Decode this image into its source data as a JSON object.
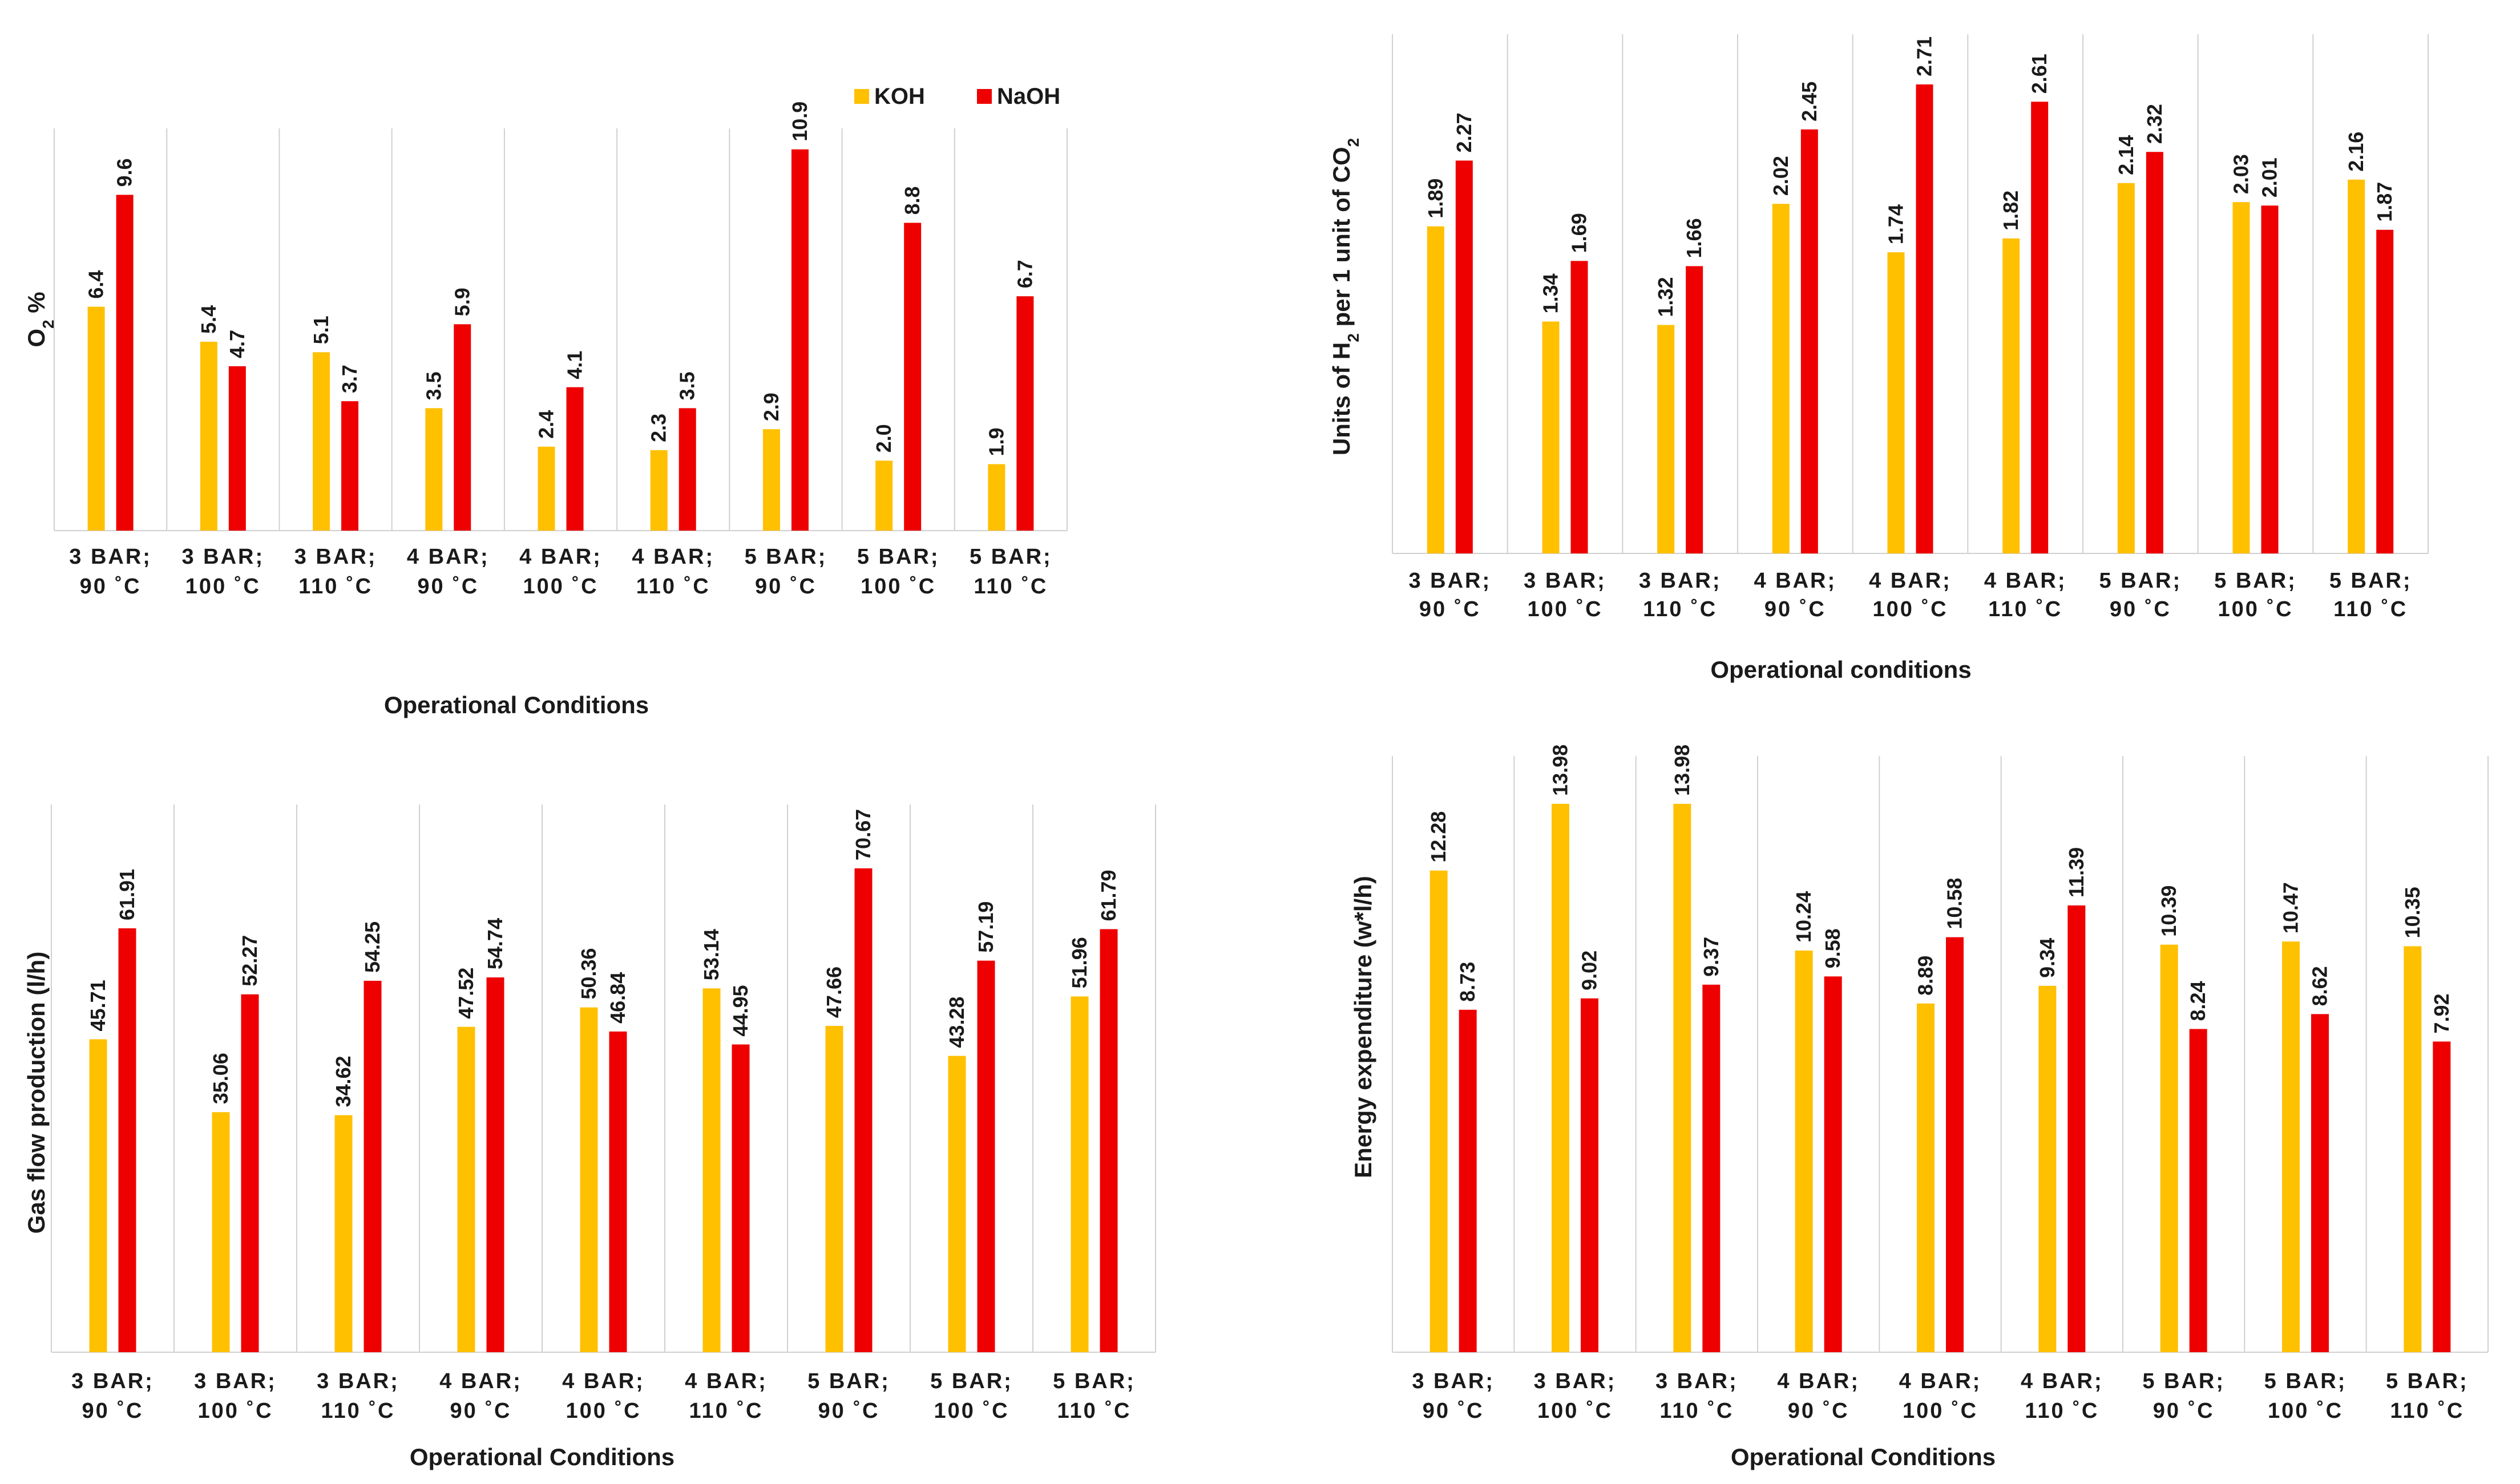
{
  "series_names": [
    "KOH",
    "NaOH"
  ],
  "colors": {
    "KOH": "#FFC000",
    "NaOH": "#EE0000",
    "grid": "#d0d0d0"
  },
  "categories": [
    [
      "3 BAR;",
      "90 ˚C"
    ],
    [
      "3 BAR;",
      "100 ˚C"
    ],
    [
      "3 BAR;",
      "110 ˚C"
    ],
    [
      "4 BAR;",
      "90 ˚C"
    ],
    [
      "4 BAR;",
      "100 ˚C"
    ],
    [
      "4 BAR;",
      "110 ˚C"
    ],
    [
      "5 BAR;",
      "90 ˚C"
    ],
    [
      "5 BAR;",
      "100 ˚C"
    ],
    [
      "5 BAR;",
      "110 ˚C"
    ]
  ],
  "chart_data": [
    {
      "id": "o2",
      "type": "bar",
      "title": "",
      "xlabel": "Operational Conditions",
      "ylabel": {
        "main": "O",
        "sub": "2",
        "suffix": " %"
      },
      "ylim": [
        0,
        11.5
      ],
      "legend": "top-right",
      "series": [
        {
          "name": "KOH",
          "values": [
            6.4,
            5.4,
            5.1,
            3.5,
            2.4,
            2.3,
            2.9,
            2.0,
            1.9
          ],
          "labels": [
            "6.4",
            "5.4",
            "5.1",
            "3.5",
            "2.4",
            "2.3",
            "2.9",
            "2.0",
            "1.9"
          ]
        },
        {
          "name": "NaOH",
          "values": [
            9.6,
            4.7,
            3.7,
            5.9,
            4.1,
            3.5,
            10.9,
            8.8,
            6.7
          ],
          "labels": [
            "9.6",
            "4.7",
            "3.7",
            "5.9",
            "4.1",
            "3.5",
            "10.9",
            "8.8",
            "6.7"
          ]
        }
      ]
    },
    {
      "id": "h2co2",
      "type": "bar",
      "title": "",
      "xlabel": "Operational conditions",
      "ylabel": {
        "p1": "Units of H",
        "s1": "2",
        "p2": " per 1 unit of CO",
        "s2": "2"
      },
      "ylim": [
        0,
        3.0
      ],
      "series": [
        {
          "name": "KOH",
          "values": [
            1.89,
            1.34,
            1.32,
            2.02,
            1.74,
            1.82,
            2.14,
            2.03,
            2.16
          ],
          "labels": [
            "1.89",
            "1.34",
            "1.32",
            "2.02",
            "1.74",
            "1.82",
            "2.14",
            "2.03",
            "2.16"
          ]
        },
        {
          "name": "NaOH",
          "values": [
            2.27,
            1.69,
            1.66,
            2.45,
            2.71,
            2.61,
            2.32,
            2.01,
            1.87
          ],
          "labels": [
            "2.27",
            "1.69",
            "1.66",
            "2.45",
            "2.71",
            "2.61",
            "2.32",
            "2.01",
            "1.87"
          ]
        }
      ]
    },
    {
      "id": "gasflow",
      "type": "bar",
      "title": "",
      "xlabel": "Operational Conditions",
      "ylabel": {
        "text": "Gas flow production (l/h)"
      },
      "ylim": [
        0,
        80
      ],
      "series": [
        {
          "name": "KOH",
          "values": [
            45.71,
            35.06,
            34.62,
            47.52,
            50.36,
            53.14,
            47.66,
            43.28,
            51.96
          ],
          "labels": [
            "45.71",
            "35.06",
            "34.62",
            "47.52",
            "50.36",
            "53.14",
            "47.66",
            "43.28",
            "51.96"
          ]
        },
        {
          "name": "NaOH",
          "values": [
            61.91,
            52.27,
            54.25,
            54.74,
            46.84,
            44.95,
            70.67,
            57.19,
            61.79
          ],
          "labels": [
            "61.91",
            "52.27",
            "54.25",
            "54.74",
            "46.84",
            "44.95",
            "70.67",
            "57.19",
            "61.79"
          ]
        }
      ]
    },
    {
      "id": "energy",
      "type": "bar",
      "title": "",
      "xlabel": "Operational Conditions",
      "ylabel": {
        "text": "Energy expenditure (w*l/h)"
      },
      "ylim": [
        0,
        15.2
      ],
      "series": [
        {
          "name": "KOH",
          "values": [
            12.28,
            13.98,
            13.98,
            10.24,
            8.89,
            9.34,
            10.39,
            10.47,
            10.35
          ],
          "labels": [
            "12.28",
            "13.98",
            "13.98",
            "10.24",
            "8.89",
            "9.34",
            "10.39",
            "10.47",
            "10.35"
          ]
        },
        {
          "name": "NaOH",
          "values": [
            8.73,
            9.02,
            9.37,
            9.58,
            10.58,
            11.39,
            8.24,
            8.62,
            7.92
          ],
          "labels": [
            "8.73",
            "9.02",
            "9.37",
            "9.58",
            "10.58",
            "11.39",
            "8.24",
            "8.62",
            "7.92"
          ]
        }
      ]
    }
  ]
}
